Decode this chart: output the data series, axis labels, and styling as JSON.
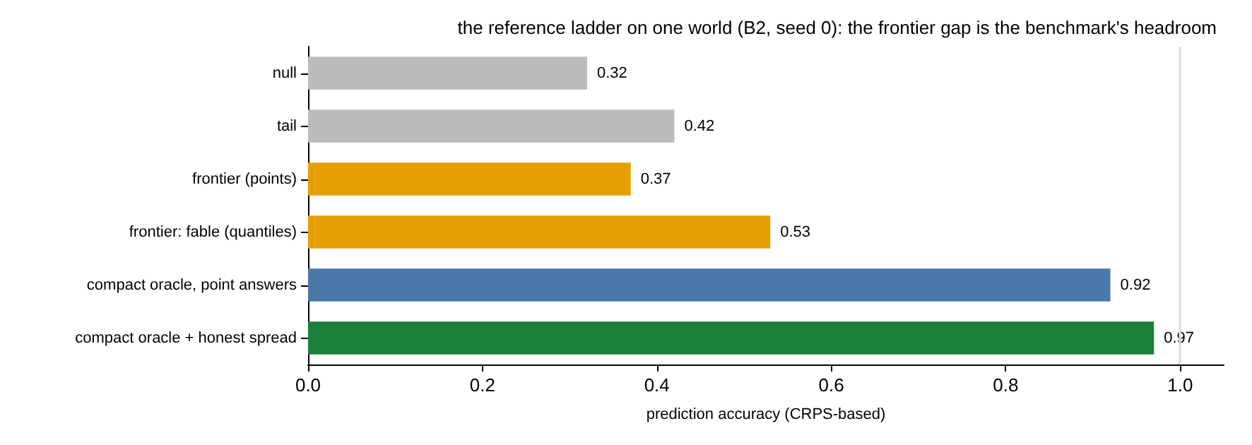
{
  "chart_data": {
    "type": "bar",
    "orientation": "horizontal",
    "title": "the reference ladder on one world (B2, seed 0): the frontier gap is the benchmark's headroom",
    "xlabel": "prediction accuracy (CRPS-based)",
    "categories": [
      "null",
      "tail",
      "frontier (points)",
      "frontier: fable (quantiles)",
      "compact oracle, point answers",
      "compact oracle + honest spread"
    ],
    "values": [
      0.32,
      0.42,
      0.37,
      0.53,
      0.92,
      0.97
    ],
    "colors": [
      "#bbbbbb",
      "#bbbbbb",
      "#e69f00",
      "#e69f00",
      "#4a78a8",
      "#1b7f3a"
    ],
    "data_labels": true,
    "xlim": [
      0,
      1.05
    ],
    "xticks": [
      {
        "value": 0,
        "label": "0.0"
      },
      {
        "value": 0.2,
        "label": "0.2"
      },
      {
        "value": 0.4,
        "label": "0.4"
      },
      {
        "value": 0.6,
        "label": "0.6"
      },
      {
        "value": 0.8,
        "label": "0.8"
      },
      {
        "value": 1,
        "label": "1.0"
      }
    ],
    "ref_lines": [
      {
        "axis": "x",
        "value": 1,
        "color": "#dddddd"
      }
    ],
    "grid": false
  }
}
